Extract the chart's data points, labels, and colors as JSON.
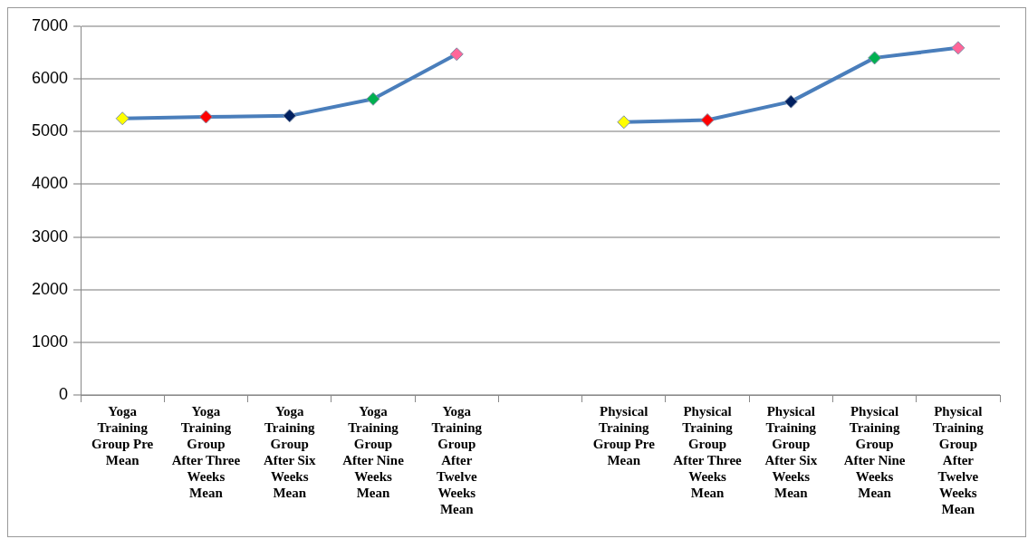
{
  "chart_data": {
    "type": "line",
    "categories": [
      "Yoga Training Group Pre Mean",
      "Yoga Training Group After Three Weeks Mean",
      "Yoga Training Group After Six Weeks Mean",
      "Yoga Training Group After Nine Weeks Mean",
      "Yoga Training Group After Twelve Weeks Mean",
      null,
      "Physical Training Group Pre Mean",
      "Physical Training Group After Three Weeks Mean",
      "Physical Training Group After Six Weeks Mean",
      "Physical Training Group After Nine Weeks Mean",
      "Physical Training Group After Twelve Weeks Mean"
    ],
    "series": [
      {
        "color": "#4a7ebb",
        "values": [
          5250,
          5280,
          5300,
          5620,
          6470,
          null,
          5180,
          5220,
          5570,
          6400,
          6590
        ],
        "colors": [
          "#ffff00",
          "#ff0000",
          "#002060",
          "#00b050",
          "#ff6699",
          null,
          "#ffff00",
          "#ff0000",
          "#002060",
          "#00b050",
          "#ff6699"
        ]
      }
    ],
    "ylim": [
      0,
      7000
    ],
    "yticks": [
      0,
      1000,
      2000,
      3000,
      4000,
      5000,
      6000,
      7000
    ],
    "grid": "y",
    "legend": false,
    "marker": "diamond",
    "line_style": "solid"
  }
}
